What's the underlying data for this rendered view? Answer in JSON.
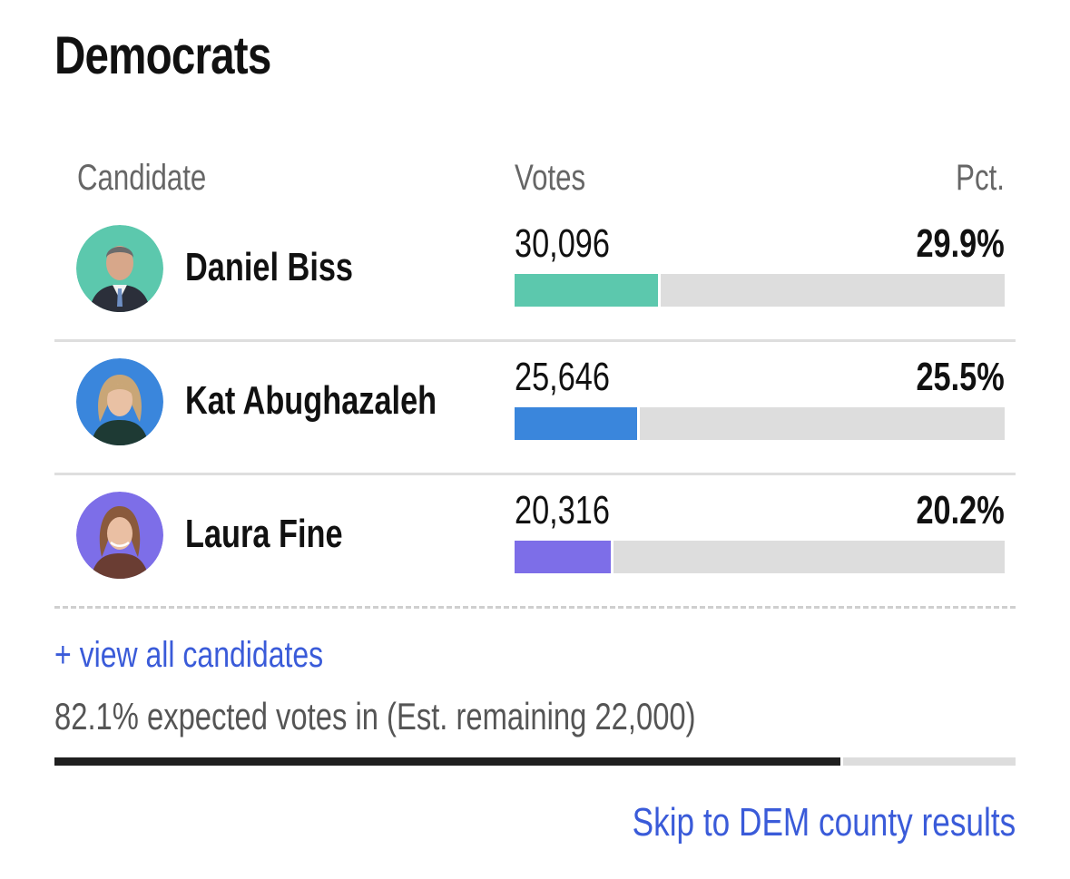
{
  "section": {
    "title": "Democrats"
  },
  "table": {
    "headers": {
      "candidate": "Candidate",
      "votes": "Votes",
      "pct": "Pct."
    },
    "rows": [
      {
        "name": "Daniel Biss",
        "votes": "30,096",
        "pct": "29.9%",
        "share": 0.299,
        "color": "#5cc8ad",
        "avatar_bg": "#5cc8ad"
      },
      {
        "name": "Kat Abughazaleh",
        "votes": "25,646",
        "pct": "25.5%",
        "share": 0.255,
        "color": "#3a86dc",
        "avatar_bg": "#3a86dc"
      },
      {
        "name": "Laura Fine",
        "votes": "20,316",
        "pct": "20.2%",
        "share": 0.202,
        "color": "#7d6ee8",
        "avatar_bg": "#7d6ee8"
      }
    ]
  },
  "footer": {
    "view_all_label": "+ view all candidates",
    "expected_text": "82.1% expected votes in (Est. remaining 22,000)",
    "expected_share": 0.821,
    "skip_link_label": "Skip to DEM county results"
  },
  "colors": {
    "link": "#3a5bd9",
    "track": "#dddddd",
    "progress": "#1f1f1f"
  }
}
